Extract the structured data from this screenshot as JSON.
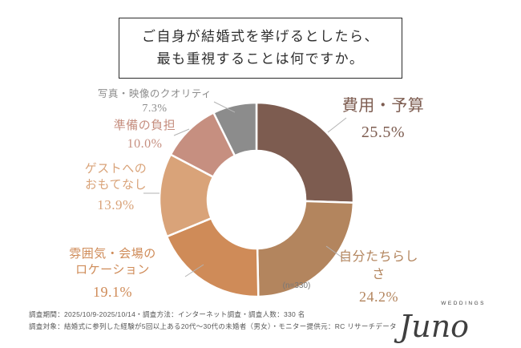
{
  "title": {
    "line1": "ご自身が結婚式を挙げるとしたら、",
    "line2": "最も重視することは何ですか。"
  },
  "chart_data": {
    "type": "pie",
    "donut": true,
    "title": "ご自身が結婚式を挙げるとしたら、最も重視することは何ですか。",
    "n_label": "(n=330)",
    "legend": "none",
    "start_angle": "top",
    "direction": "clockwise",
    "segments": [
      {
        "label": "費用・予算",
        "display": "費用・予算",
        "value": 25.5,
        "pct": "25.5%",
        "color": "#7d5c50"
      },
      {
        "label": "自分たちらしさ",
        "display": "自分たちらしさ",
        "value": 24.2,
        "pct": "24.2%",
        "color": "#b3855e"
      },
      {
        "label": "雰囲気・会場のロケーション",
        "display": "雰囲気・会場の\nロケーション",
        "value": 19.1,
        "pct": "19.1%",
        "color": "#cf8b58"
      },
      {
        "label": "ゲストへのおもてなし",
        "display": "ゲストへの\nおもてなし",
        "value": 13.9,
        "pct": "13.9%",
        "color": "#d9a379"
      },
      {
        "label": "準備の負担",
        "display": "準備の負担",
        "value": 10.0,
        "pct": "10.0%",
        "color": "#c68f80"
      },
      {
        "label": "写真・映像のクオリティ",
        "display": "写真・映像のクオリティ",
        "value": 7.3,
        "pct": "7.3%",
        "color": "#8c8c8c"
      }
    ]
  },
  "footer": {
    "line1": "調査期間：2025/10/9-2025/10/14・調査方法：インターネット調査・調査人数：330 名",
    "line2": "調査対象：結婚式に参列した経験が5回以上ある20代～30代の未婚者（男女）・モニター提供元：RC リサーチデータ"
  },
  "logo": {
    "name": "Juno",
    "sub": "WEDDINGS"
  }
}
